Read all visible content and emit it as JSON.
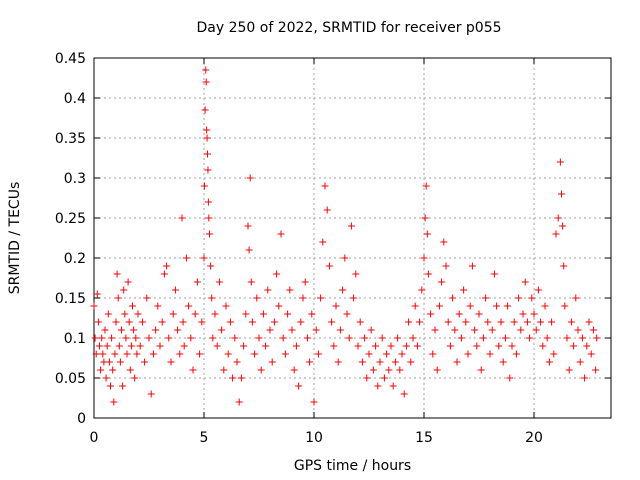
{
  "chart_data": {
    "type": "scatter",
    "title": "Day 250 of 2022, SRMTID for receiver p055",
    "xlabel": "GPS time / hours",
    "ylabel": "SRMTID / TECUs",
    "xlim": [
      0,
      23.5
    ],
    "ylim": [
      0,
      0.45
    ],
    "x_ticks": [
      0,
      5,
      10,
      15,
      20
    ],
    "x_tick_labels": [
      "0",
      "5",
      "10",
      "15",
      "20"
    ],
    "y_ticks": [
      0,
      0.05,
      0.1,
      0.15,
      0.2,
      0.25,
      0.3,
      0.35,
      0.4,
      0.45
    ],
    "y_tick_labels": [
      "0",
      "0.05",
      "0.1",
      "0.15",
      "0.2",
      "0.25",
      "0.3",
      "0.35",
      "0.4",
      "0.45"
    ],
    "grid": true,
    "marker": "+",
    "color": "#ff0000",
    "series": [
      {
        "name": "SRMTID",
        "points": [
          [
            0.0,
            0.14
          ],
          [
            0.05,
            0.1
          ],
          [
            0.1,
            0.08
          ],
          [
            0.15,
            0.155
          ],
          [
            0.2,
            0.12
          ],
          [
            0.25,
            0.09
          ],
          [
            0.3,
            0.06
          ],
          [
            0.35,
            0.1
          ],
          [
            0.4,
            0.08
          ],
          [
            0.45,
            0.07
          ],
          [
            0.5,
            0.11
          ],
          [
            0.55,
            0.05
          ],
          [
            0.6,
            0.09
          ],
          [
            0.65,
            0.13
          ],
          [
            0.7,
            0.07
          ],
          [
            0.75,
            0.04
          ],
          [
            0.8,
            0.1
          ],
          [
            0.85,
            0.06
          ],
          [
            0.9,
            0.02
          ],
          [
            0.95,
            0.08
          ],
          [
            1.0,
            0.12
          ],
          [
            1.05,
            0.18
          ],
          [
            1.1,
            0.15
          ],
          [
            1.15,
            0.09
          ],
          [
            1.2,
            0.07
          ],
          [
            1.25,
            0.11
          ],
          [
            1.3,
            0.04
          ],
          [
            1.35,
            0.16
          ],
          [
            1.4,
            0.13
          ],
          [
            1.45,
            0.1
          ],
          [
            1.5,
            0.08
          ],
          [
            1.55,
            0.17
          ],
          [
            1.6,
            0.12
          ],
          [
            1.65,
            0.06
          ],
          [
            1.7,
            0.09
          ],
          [
            1.75,
            0.14
          ],
          [
            1.8,
            0.11
          ],
          [
            1.85,
            0.05
          ],
          [
            1.9,
            0.1
          ],
          [
            1.95,
            0.08
          ],
          [
            2.0,
            0.13
          ],
          [
            2.1,
            0.09
          ],
          [
            2.2,
            0.12
          ],
          [
            2.3,
            0.07
          ],
          [
            2.4,
            0.15
          ],
          [
            2.5,
            0.1
          ],
          [
            2.6,
            0.03
          ],
          [
            2.7,
            0.08
          ],
          [
            2.8,
            0.11
          ],
          [
            2.9,
            0.14
          ],
          [
            3.0,
            0.09
          ],
          [
            3.1,
            0.12
          ],
          [
            3.2,
            0.18
          ],
          [
            3.3,
            0.19
          ],
          [
            3.4,
            0.1
          ],
          [
            3.5,
            0.07
          ],
          [
            3.6,
            0.13
          ],
          [
            3.7,
            0.16
          ],
          [
            3.8,
            0.11
          ],
          [
            3.9,
            0.08
          ],
          [
            4.0,
            0.25
          ],
          [
            4.05,
            0.12
          ],
          [
            4.1,
            0.09
          ],
          [
            4.2,
            0.2
          ],
          [
            4.3,
            0.14
          ],
          [
            4.4,
            0.1
          ],
          [
            4.5,
            0.06
          ],
          [
            4.6,
            0.13
          ],
          [
            4.7,
            0.17
          ],
          [
            4.8,
            0.08
          ],
          [
            4.9,
            0.12
          ],
          [
            5.0,
            0.2
          ],
          [
            5.02,
            0.29
          ],
          [
            5.05,
            0.385
          ],
          [
            5.08,
            0.435
          ],
          [
            5.1,
            0.42
          ],
          [
            5.12,
            0.36
          ],
          [
            5.14,
            0.35
          ],
          [
            5.16,
            0.33
          ],
          [
            5.18,
            0.31
          ],
          [
            5.2,
            0.27
          ],
          [
            5.22,
            0.25
          ],
          [
            5.25,
            0.23
          ],
          [
            5.3,
            0.19
          ],
          [
            5.35,
            0.15
          ],
          [
            5.4,
            0.1
          ],
          [
            5.5,
            0.13
          ],
          [
            5.6,
            0.09
          ],
          [
            5.7,
            0.17
          ],
          [
            5.8,
            0.11
          ],
          [
            5.9,
            0.06
          ],
          [
            6.0,
            0.14
          ],
          [
            6.1,
            0.08
          ],
          [
            6.2,
            0.12
          ],
          [
            6.3,
            0.05
          ],
          [
            6.4,
            0.1
          ],
          [
            6.5,
            0.07
          ],
          [
            6.6,
            0.02
          ],
          [
            6.7,
            0.05
          ],
          [
            6.8,
            0.09
          ],
          [
            6.9,
            0.13
          ],
          [
            7.0,
            0.24
          ],
          [
            7.05,
            0.21
          ],
          [
            7.1,
            0.3
          ],
          [
            7.15,
            0.17
          ],
          [
            7.2,
            0.12
          ],
          [
            7.3,
            0.08
          ],
          [
            7.4,
            0.15
          ],
          [
            7.5,
            0.1
          ],
          [
            7.6,
            0.06
          ],
          [
            7.7,
            0.13
          ],
          [
            7.8,
            0.09
          ],
          [
            7.9,
            0.16
          ],
          [
            8.0,
            0.11
          ],
          [
            8.1,
            0.07
          ],
          [
            8.2,
            0.12
          ],
          [
            8.3,
            0.18
          ],
          [
            8.4,
            0.14
          ],
          [
            8.5,
            0.23
          ],
          [
            8.6,
            0.1
          ],
          [
            8.7,
            0.08
          ],
          [
            8.8,
            0.13
          ],
          [
            8.9,
            0.16
          ],
          [
            9.0,
            0.11
          ],
          [
            9.1,
            0.06
          ],
          [
            9.2,
            0.09
          ],
          [
            9.3,
            0.04
          ],
          [
            9.4,
            0.12
          ],
          [
            9.5,
            0.15
          ],
          [
            9.6,
            0.17
          ],
          [
            9.7,
            0.1
          ],
          [
            9.8,
            0.07
          ],
          [
            9.9,
            0.13
          ],
          [
            10.0,
            0.02
          ],
          [
            10.1,
            0.11
          ],
          [
            10.2,
            0.08
          ],
          [
            10.3,
            0.15
          ],
          [
            10.4,
            0.22
          ],
          [
            10.5,
            0.29
          ],
          [
            10.6,
            0.26
          ],
          [
            10.7,
            0.19
          ],
          [
            10.8,
            0.12
          ],
          [
            10.9,
            0.09
          ],
          [
            11.0,
            0.14
          ],
          [
            11.1,
            0.07
          ],
          [
            11.2,
            0.11
          ],
          [
            11.3,
            0.16
          ],
          [
            11.4,
            0.2
          ],
          [
            11.5,
            0.13
          ],
          [
            11.6,
            0.1
          ],
          [
            11.7,
            0.24
          ],
          [
            11.8,
            0.15
          ],
          [
            11.9,
            0.18
          ],
          [
            12.0,
            0.09
          ],
          [
            12.1,
            0.12
          ],
          [
            12.2,
            0.07
          ],
          [
            12.3,
            0.1
          ],
          [
            12.4,
            0.05
          ],
          [
            12.5,
            0.08
          ],
          [
            12.6,
            0.11
          ],
          [
            12.7,
            0.06
          ],
          [
            12.8,
            0.09
          ],
          [
            12.9,
            0.04
          ],
          [
            13.0,
            0.07
          ],
          [
            13.1,
            0.1
          ],
          [
            13.2,
            0.05
          ],
          [
            13.3,
            0.08
          ],
          [
            13.4,
            0.06
          ],
          [
            13.5,
            0.09
          ],
          [
            13.6,
            0.04
          ],
          [
            13.7,
            0.07
          ],
          [
            13.8,
            0.1
          ],
          [
            13.9,
            0.06
          ],
          [
            14.0,
            0.08
          ],
          [
            14.1,
            0.03
          ],
          [
            14.2,
            0.09
          ],
          [
            14.3,
            0.12
          ],
          [
            14.4,
            0.07
          ],
          [
            14.5,
            0.1
          ],
          [
            14.6,
            0.14
          ],
          [
            14.7,
            0.09
          ],
          [
            14.8,
            0.12
          ],
          [
            14.9,
            0.16
          ],
          [
            15.0,
            0.2
          ],
          [
            15.05,
            0.25
          ],
          [
            15.1,
            0.29
          ],
          [
            15.15,
            0.23
          ],
          [
            15.2,
            0.18
          ],
          [
            15.3,
            0.13
          ],
          [
            15.4,
            0.08
          ],
          [
            15.5,
            0.11
          ],
          [
            15.6,
            0.06
          ],
          [
            15.7,
            0.14
          ],
          [
            15.8,
            0.17
          ],
          [
            15.9,
            0.22
          ],
          [
            16.0,
            0.19
          ],
          [
            16.1,
            0.12
          ],
          [
            16.2,
            0.09
          ],
          [
            16.3,
            0.15
          ],
          [
            16.4,
            0.11
          ],
          [
            16.5,
            0.07
          ],
          [
            16.6,
            0.13
          ],
          [
            16.7,
            0.1
          ],
          [
            16.8,
            0.16
          ],
          [
            16.9,
            0.12
          ],
          [
            17.0,
            0.08
          ],
          [
            17.1,
            0.14
          ],
          [
            17.2,
            0.19
          ],
          [
            17.3,
            0.11
          ],
          [
            17.4,
            0.09
          ],
          [
            17.5,
            0.13
          ],
          [
            17.6,
            0.06
          ],
          [
            17.7,
            0.1
          ],
          [
            17.8,
            0.15
          ],
          [
            17.9,
            0.12
          ],
          [
            18.0,
            0.08
          ],
          [
            18.1,
            0.11
          ],
          [
            18.2,
            0.18
          ],
          [
            18.3,
            0.14
          ],
          [
            18.4,
            0.09
          ],
          [
            18.5,
            0.12
          ],
          [
            18.6,
            0.07
          ],
          [
            18.7,
            0.1
          ],
          [
            18.8,
            0.14
          ],
          [
            18.9,
            0.05
          ],
          [
            19.0,
            0.09
          ],
          [
            19.1,
            0.12
          ],
          [
            19.2,
            0.08
          ],
          [
            19.3,
            0.15
          ],
          [
            19.4,
            0.11
          ],
          [
            19.5,
            0.13
          ],
          [
            19.6,
            0.17
          ],
          [
            19.7,
            0.12
          ],
          [
            19.8,
            0.1
          ],
          [
            19.9,
            0.15
          ],
          [
            20.0,
            0.13
          ],
          [
            20.1,
            0.11
          ],
          [
            20.2,
            0.16
          ],
          [
            20.3,
            0.12
          ],
          [
            20.4,
            0.09
          ],
          [
            20.5,
            0.14
          ],
          [
            20.6,
            0.1
          ],
          [
            20.7,
            0.07
          ],
          [
            20.8,
            0.12
          ],
          [
            20.9,
            0.08
          ],
          [
            21.0,
            0.23
          ],
          [
            21.1,
            0.25
          ],
          [
            21.2,
            0.32
          ],
          [
            21.25,
            0.28
          ],
          [
            21.3,
            0.24
          ],
          [
            21.35,
            0.19
          ],
          [
            21.4,
            0.14
          ],
          [
            21.5,
            0.1
          ],
          [
            21.6,
            0.06
          ],
          [
            21.7,
            0.12
          ],
          [
            21.8,
            0.09
          ],
          [
            21.9,
            0.15
          ],
          [
            22.0,
            0.11
          ],
          [
            22.1,
            0.07
          ],
          [
            22.2,
            0.1
          ],
          [
            22.3,
            0.05
          ],
          [
            22.4,
            0.09
          ],
          [
            22.5,
            0.12
          ],
          [
            22.6,
            0.08
          ],
          [
            22.7,
            0.11
          ],
          [
            22.8,
            0.06
          ],
          [
            22.85,
            0.1
          ]
        ]
      }
    ]
  }
}
